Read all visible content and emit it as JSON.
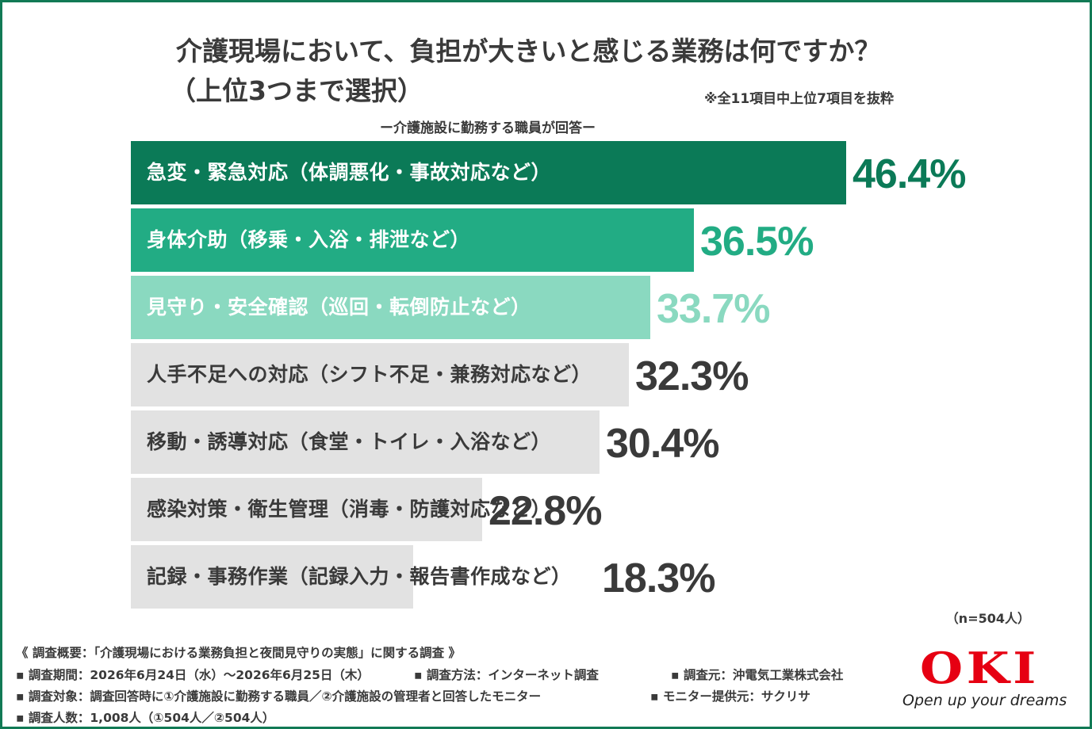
{
  "colors": {
    "frame": "#117a55",
    "bar_top1": "#0b7a57",
    "bar_top2": "#22ac84",
    "bar_top3": "#8ad9c0",
    "bar_other": "#e2e2e2",
    "text_dark": "#3a3a3a"
  },
  "chart_data": {
    "type": "bar",
    "orientation": "horizontal",
    "title": "介護現場において、負担が大きいと感じる業務は何ですか？",
    "title_line2": "（上位3つまで選択）",
    "subtitle": "ー介護施設に勤務する職員が回答ー",
    "note": "※全11項目中上位7項目を抜粋",
    "categories": [
      "急変・緊急対応（体調悪化・事故対応など）",
      "身体介助（移乗・入浴・排泄など）",
      "見守り・安全確認（巡回・転倒防止など）",
      "人手不足への対応（シフト不足・兼務対応など）",
      "移動・誘導対応（食堂・トイレ・入浴など）",
      "感染対策・衛生管理（消毒・防護対応など）",
      "記録・事務作業（記録入力・報告書作成など）"
    ],
    "values": [
      46.4,
      36.5,
      33.7,
      32.3,
      30.4,
      22.8,
      18.3
    ],
    "value_labels": [
      "46.4%",
      "36.5%",
      "33.7%",
      "32.3%",
      "30.4%",
      "22.8%",
      "18.3%"
    ],
    "unit": "%",
    "sample_size": "（n=504人）"
  },
  "survey": {
    "overview": "《 調査概要：「介護現場における業務負担と夜間見守りの実態」に関する調査 》",
    "period": "▪ 調査期間：2026年6月24日（水）～2026年6月25日（木）",
    "method": "▪ 調査方法：インターネット調査",
    "conductor": "▪ 調査元：沖電気工業株式会社",
    "target": "▪ 調査対象：調査回答時に①介護施設に勤務する職員／②介護施設の管理者と回答したモニター",
    "provider": "▪ モニター提供元：サクリサ",
    "count": "▪ 調査人数：1,008人（①504人／②504人）"
  },
  "logo": {
    "mark": "OKI",
    "tagline": "Open up your dreams"
  }
}
